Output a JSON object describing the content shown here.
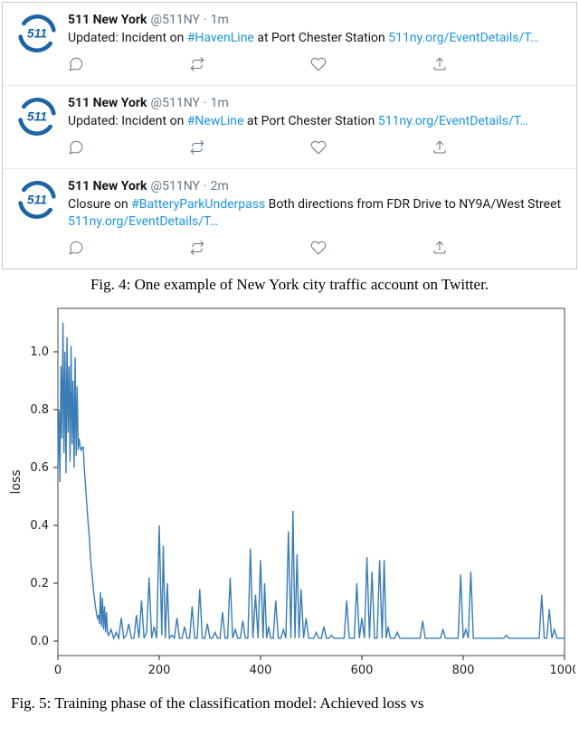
{
  "tweets": [
    {
      "name": "511 New York",
      "handle": "@511NY",
      "time": "1m",
      "prefix": "Updated: Incident on ",
      "hashtag": "#HavenLine",
      "middle": " at Port Chester Station ",
      "suffix": "",
      "link": "511ny.org/EventDetails/T…"
    },
    {
      "name": "511 New York",
      "handle": "@511NY",
      "time": "1m",
      "prefix": "Updated: Incident on ",
      "hashtag": "#NewLine",
      "middle": " at Port Chester Station ",
      "suffix": "",
      "link": "511ny.org/EventDetails/T…"
    },
    {
      "name": "511 New York",
      "handle": "@511NY",
      "time": "2m",
      "prefix": "Closure on ",
      "hashtag": "#BatteryParkUnderpass",
      "middle": " Both directions from FDR Drive to NY9A/West Street ",
      "suffix": "",
      "link": "511ny.org/EventDetails/T…"
    }
  ],
  "captions": {
    "fig4": "Fig. 4:  One example of New York city traffic account on Twitter.",
    "fig5_partial": "Fig. 5:   Training phase of the classification model: Achieved loss vs"
  },
  "chart": {
    "type": "line",
    "line_color": "#3a7cb5",
    "line_width": 1.4,
    "bg": "#ffffff",
    "xlim": [
      0,
      1000
    ],
    "ylim": [
      -0.05,
      1.15
    ],
    "xticks": [
      0,
      200,
      400,
      600,
      800,
      1000
    ],
    "yticks": [
      0.0,
      0.2,
      0.4,
      0.6,
      0.8,
      1.0
    ],
    "ylabel": "loss",
    "series": [
      [
        0,
        0.6
      ],
      [
        2,
        0.8
      ],
      [
        4,
        0.55
      ],
      [
        6,
        0.95
      ],
      [
        8,
        0.7
      ],
      [
        10,
        1.1
      ],
      [
        12,
        0.65
      ],
      [
        14,
        1.0
      ],
      [
        16,
        0.58
      ],
      [
        18,
        1.05
      ],
      [
        20,
        0.72
      ],
      [
        22,
        0.95
      ],
      [
        24,
        0.62
      ],
      [
        26,
        1.02
      ],
      [
        28,
        0.68
      ],
      [
        30,
        0.9
      ],
      [
        32,
        0.6
      ],
      [
        34,
        0.98
      ],
      [
        36,
        0.64
      ],
      [
        38,
        0.88
      ],
      [
        40,
        0.66
      ],
      [
        42,
        0.7
      ],
      [
        44,
        0.67
      ],
      [
        46,
        0.66
      ],
      [
        48,
        0.67
      ],
      [
        50,
        0.67
      ],
      [
        52,
        0.6
      ],
      [
        54,
        0.55
      ],
      [
        56,
        0.5
      ],
      [
        58,
        0.45
      ],
      [
        60,
        0.4
      ],
      [
        62,
        0.36
      ],
      [
        64,
        0.3
      ],
      [
        66,
        0.25
      ],
      [
        68,
        0.22
      ],
      [
        70,
        0.18
      ],
      [
        72,
        0.15
      ],
      [
        74,
        0.12
      ],
      [
        76,
        0.1
      ],
      [
        78,
        0.08
      ],
      [
        80,
        0.09
      ],
      [
        82,
        0.06
      ],
      [
        84,
        0.17
      ],
      [
        86,
        0.05
      ],
      [
        88,
        0.15
      ],
      [
        90,
        0.04
      ],
      [
        92,
        0.12
      ],
      [
        94,
        0.03
      ],
      [
        96,
        0.1
      ],
      [
        98,
        0.03
      ],
      [
        100,
        0.02
      ],
      [
        105,
        0.04
      ],
      [
        110,
        0.01
      ],
      [
        115,
        0.03
      ],
      [
        120,
        0.01
      ],
      [
        125,
        0.08
      ],
      [
        130,
        0.01
      ],
      [
        135,
        0.02
      ],
      [
        140,
        0.06
      ],
      [
        145,
        0.01
      ],
      [
        150,
        0.01
      ],
      [
        155,
        0.09
      ],
      [
        160,
        0.01
      ],
      [
        165,
        0.14
      ],
      [
        170,
        0.01
      ],
      [
        175,
        0.03
      ],
      [
        180,
        0.22
      ],
      [
        185,
        0.01
      ],
      [
        190,
        0.05
      ],
      [
        195,
        0.01
      ],
      [
        200,
        0.4
      ],
      [
        205,
        0.02
      ],
      [
        208,
        0.33
      ],
      [
        212,
        0.01
      ],
      [
        216,
        0.2
      ],
      [
        220,
        0.01
      ],
      [
        225,
        0.02
      ],
      [
        230,
        0.01
      ],
      [
        235,
        0.08
      ],
      [
        240,
        0.01
      ],
      [
        245,
        0.01
      ],
      [
        250,
        0.05
      ],
      [
        255,
        0.01
      ],
      [
        260,
        0.01
      ],
      [
        265,
        0.12
      ],
      [
        270,
        0.01
      ],
      [
        275,
        0.01
      ],
      [
        280,
        0.18
      ],
      [
        285,
        0.01
      ],
      [
        290,
        0.01
      ],
      [
        295,
        0.06
      ],
      [
        300,
        0.01
      ],
      [
        305,
        0.01
      ],
      [
        310,
        0.03
      ],
      [
        315,
        0.01
      ],
      [
        320,
        0.01
      ],
      [
        325,
        0.1
      ],
      [
        330,
        0.01
      ],
      [
        335,
        0.01
      ],
      [
        340,
        0.22
      ],
      [
        345,
        0.01
      ],
      [
        350,
        0.04
      ],
      [
        355,
        0.01
      ],
      [
        360,
        0.01
      ],
      [
        365,
        0.07
      ],
      [
        370,
        0.01
      ],
      [
        375,
        0.01
      ],
      [
        380,
        0.32
      ],
      [
        385,
        0.01
      ],
      [
        390,
        0.16
      ],
      [
        395,
        0.01
      ],
      [
        400,
        0.28
      ],
      [
        405,
        0.01
      ],
      [
        408,
        0.2
      ],
      [
        412,
        0.01
      ],
      [
        416,
        0.05
      ],
      [
        420,
        0.01
      ],
      [
        425,
        0.01
      ],
      [
        430,
        0.14
      ],
      [
        435,
        0.01
      ],
      [
        440,
        0.01
      ],
      [
        445,
        0.04
      ],
      [
        450,
        0.01
      ],
      [
        455,
        0.38
      ],
      [
        460,
        0.01
      ],
      [
        464,
        0.45
      ],
      [
        468,
        0.01
      ],
      [
        472,
        0.3
      ],
      [
        476,
        0.01
      ],
      [
        480,
        0.18
      ],
      [
        485,
        0.01
      ],
      [
        490,
        0.08
      ],
      [
        495,
        0.01
      ],
      [
        500,
        0.01
      ],
      [
        505,
        0.01
      ],
      [
        510,
        0.03
      ],
      [
        515,
        0.01
      ],
      [
        520,
        0.01
      ],
      [
        525,
        0.05
      ],
      [
        530,
        0.01
      ],
      [
        535,
        0.01
      ],
      [
        540,
        0.02
      ],
      [
        545,
        0.01
      ],
      [
        550,
        0.01
      ],
      [
        555,
        0.01
      ],
      [
        560,
        0.01
      ],
      [
        565,
        0.01
      ],
      [
        570,
        0.14
      ],
      [
        575,
        0.01
      ],
      [
        580,
        0.01
      ],
      [
        585,
        0.01
      ],
      [
        590,
        0.2
      ],
      [
        595,
        0.01
      ],
      [
        600,
        0.08
      ],
      [
        605,
        0.01
      ],
      [
        610,
        0.29
      ],
      [
        615,
        0.01
      ],
      [
        620,
        0.24
      ],
      [
        625,
        0.01
      ],
      [
        630,
        0.01
      ],
      [
        635,
        0.28
      ],
      [
        640,
        0.01
      ],
      [
        644,
        0.28
      ],
      [
        648,
        0.01
      ],
      [
        652,
        0.05
      ],
      [
        656,
        0.01
      ],
      [
        660,
        0.01
      ],
      [
        665,
        0.01
      ],
      [
        670,
        0.03
      ],
      [
        675,
        0.01
      ],
      [
        680,
        0.01
      ],
      [
        685,
        0.01
      ],
      [
        690,
        0.01
      ],
      [
        695,
        0.01
      ],
      [
        700,
        0.01
      ],
      [
        705,
        0.01
      ],
      [
        710,
        0.01
      ],
      [
        715,
        0.01
      ],
      [
        720,
        0.07
      ],
      [
        725,
        0.01
      ],
      [
        730,
        0.01
      ],
      [
        735,
        0.01
      ],
      [
        740,
        0.01
      ],
      [
        745,
        0.01
      ],
      [
        750,
        0.01
      ],
      [
        755,
        0.01
      ],
      [
        760,
        0.04
      ],
      [
        765,
        0.01
      ],
      [
        770,
        0.01
      ],
      [
        775,
        0.01
      ],
      [
        780,
        0.01
      ],
      [
        785,
        0.01
      ],
      [
        790,
        0.01
      ],
      [
        795,
        0.23
      ],
      [
        800,
        0.01
      ],
      [
        805,
        0.04
      ],
      [
        810,
        0.01
      ],
      [
        815,
        0.24
      ],
      [
        820,
        0.01
      ],
      [
        825,
        0.01
      ],
      [
        830,
        0.01
      ],
      [
        835,
        0.01
      ],
      [
        840,
        0.01
      ],
      [
        845,
        0.01
      ],
      [
        850,
        0.01
      ],
      [
        855,
        0.01
      ],
      [
        860,
        0.01
      ],
      [
        865,
        0.01
      ],
      [
        870,
        0.01
      ],
      [
        875,
        0.01
      ],
      [
        880,
        0.01
      ],
      [
        885,
        0.02
      ],
      [
        890,
        0.01
      ],
      [
        895,
        0.01
      ],
      [
        900,
        0.01
      ],
      [
        905,
        0.01
      ],
      [
        910,
        0.01
      ],
      [
        915,
        0.01
      ],
      [
        920,
        0.01
      ],
      [
        925,
        0.01
      ],
      [
        930,
        0.01
      ],
      [
        935,
        0.01
      ],
      [
        940,
        0.01
      ],
      [
        945,
        0.01
      ],
      [
        950,
        0.01
      ],
      [
        955,
        0.16
      ],
      [
        960,
        0.01
      ],
      [
        965,
        0.01
      ],
      [
        970,
        0.11
      ],
      [
        975,
        0.01
      ],
      [
        980,
        0.04
      ],
      [
        985,
        0.01
      ],
      [
        990,
        0.01
      ],
      [
        995,
        0.01
      ],
      [
        1000,
        0.01
      ]
    ]
  },
  "avatar": {
    "text": "511",
    "ring_color": "#1b64a6",
    "text_color": "#1b64a6",
    "bg": "#ffffff"
  }
}
